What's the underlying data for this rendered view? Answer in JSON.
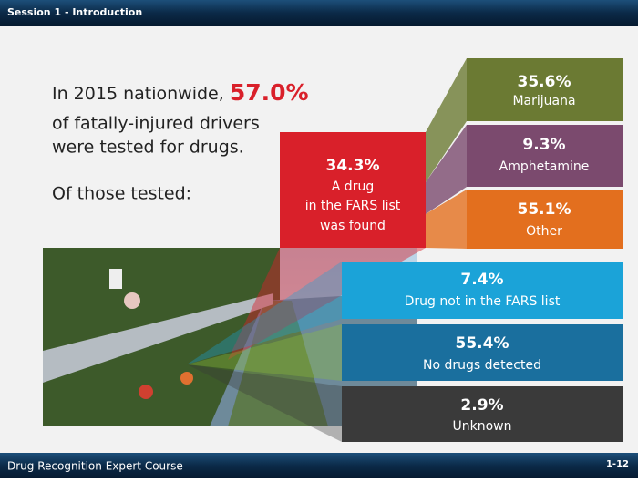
{
  "header": {
    "session": "Session 1 - Introduction"
  },
  "intro": {
    "lead": "In 2015 nationwide,",
    "highlight": "57.0%",
    "line2": "of fatally-injured drivers",
    "line3": "were tested for drugs.",
    "line4": "Of those tested:"
  },
  "found": {
    "value": "34.3%",
    "lines": [
      "A drug",
      "in the FARS list",
      "was found"
    ]
  },
  "breakdown": [
    {
      "value": "35.6%",
      "label": "Marijuana"
    },
    {
      "value": "9.3%",
      "label": "Amphetamine"
    },
    {
      "value": "55.1%",
      "label": "Other"
    }
  ],
  "others": [
    {
      "value": "7.4%",
      "label": "Drug not in the FARS list"
    },
    {
      "value": "55.4%",
      "label": "No drugs detected"
    },
    {
      "value": "2.9%",
      "label": "Unknown"
    }
  ],
  "footer": {
    "course": "Drug Recognition Expert Course",
    "page": "1-12"
  }
}
